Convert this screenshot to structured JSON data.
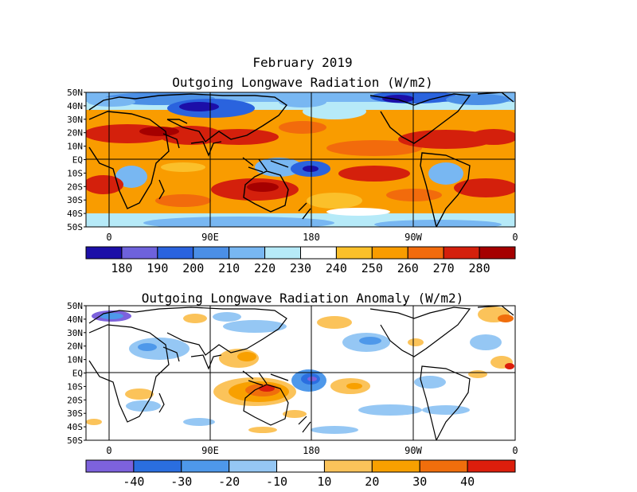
{
  "figure": {
    "main_title": "February 2019"
  },
  "maps": [
    {
      "title": "Outgoing Longwave Radiation (W/m2)",
      "lat_labels": [
        "50N",
        "40N",
        "30N",
        "20N",
        "10N",
        "EQ",
        "10S",
        "20S",
        "30S",
        "40S",
        "50S"
      ],
      "lon_labels": [
        "0",
        "90E",
        "180",
        "90W",
        "0"
      ],
      "colorbar": {
        "labels": [
          "180",
          "190",
          "200",
          "210",
          "220",
          "230",
          "240",
          "250",
          "260",
          "270",
          "280"
        ],
        "colors": [
          "#1c0fa8",
          "#6e62dc",
          "#2a63de",
          "#4b8fe6",
          "#78b7f2",
          "#b6eaf8",
          "#ffffff",
          "#fbc02a",
          "#f99c00",
          "#f26b0c",
          "#d4200c",
          "#a50000"
        ]
      }
    },
    {
      "title": "Outgoing Longwave Radiation Anomaly (W/m2)",
      "lat_labels": [
        "50N",
        "40N",
        "30N",
        "20N",
        "10N",
        "EQ",
        "10S",
        "20S",
        "30S",
        "40S",
        "50S"
      ],
      "lon_labels": [
        "0",
        "90E",
        "180",
        "90W",
        "0"
      ],
      "colorbar": {
        "labels": [
          "-40",
          "-30",
          "-20",
          "-10",
          "10",
          "20",
          "30",
          "40"
        ],
        "colors": [
          "#7d62dc",
          "#2a6ee0",
          "#4e98ea",
          "#95c7f4",
          "#ffffff",
          "#fbc35a",
          "#f8a000",
          "#f06e0c",
          "#dc1e0c"
        ]
      }
    }
  ]
}
